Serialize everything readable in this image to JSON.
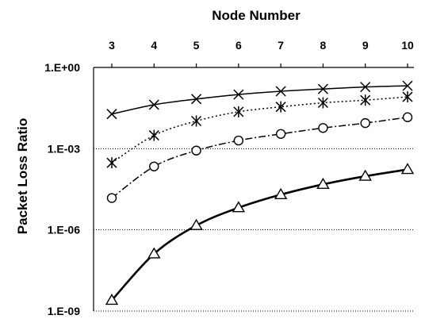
{
  "chart_data": {
    "type": "line",
    "title": "",
    "xlabel": "Node Number",
    "ylabel": "Packet Loss Ratio",
    "x": [
      3,
      4,
      5,
      6,
      7,
      8,
      9,
      10
    ],
    "x_tick_labels": [
      "3",
      "4",
      "5",
      "6",
      "7",
      "8",
      "9",
      "10"
    ],
    "xlim": [
      3,
      10
    ],
    "x_axis_position": "top",
    "yscale": "log",
    "ylim": [
      1e-09,
      1
    ],
    "y_ticks": [
      1,
      0.001,
      1e-06,
      1e-09
    ],
    "y_tick_labels": [
      "1.E+00",
      "1.E-03",
      "1.E-06",
      "1.E-09"
    ],
    "grid": "horizontal dotted",
    "legend": "none",
    "series": [
      {
        "marker": "x",
        "line_style": "solid",
        "line_width": "thin",
        "values": [
          0.019,
          0.042,
          0.068,
          0.1,
          0.132,
          0.16,
          0.19,
          0.21
        ]
      },
      {
        "marker": "asterisk",
        "line_style": "dotted",
        "line_width": "thin",
        "values": [
          0.0003,
          0.0031,
          0.0105,
          0.023,
          0.035,
          0.0495,
          0.062,
          0.082
        ]
      },
      {
        "marker": "circle",
        "line_style": "dash-dot",
        "line_width": "thin",
        "values": [
          1.5e-05,
          0.00022,
          0.00085,
          0.002,
          0.0035,
          0.0058,
          0.0088,
          0.0145
        ]
      },
      {
        "marker": "triangle",
        "line_style": "solid",
        "line_width": "thick",
        "values": [
          2.5e-09,
          1.3e-07,
          1.45e-06,
          6.6e-06,
          2e-05,
          4.8e-05,
          9.6e-05,
          0.00017
        ]
      }
    ]
  }
}
